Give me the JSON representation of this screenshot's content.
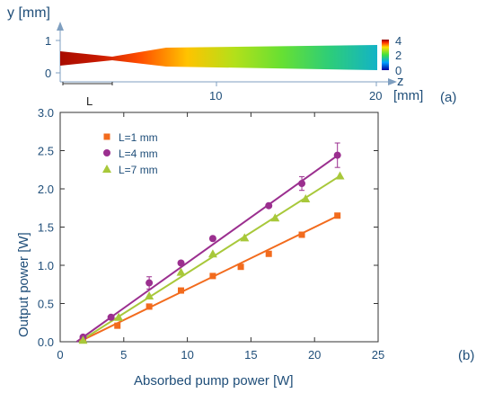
{
  "panels": {
    "a_label": "(a)",
    "b_label": "(b)"
  },
  "colors": {
    "text": "#1f4e79",
    "axis_a": "#7f9fc0",
    "series": {
      "L=1 mm": "#f26b1d",
      "L=4 mm": "#9b2f8f",
      "L=7 mm": "#a8c83a"
    }
  },
  "chart_data": [
    {
      "type": "heatmap",
      "description_of_view": "crystal temperature map along z",
      "ylabel": "y [mm]",
      "xlabel": "[mm]",
      "z_axis_label": "z",
      "x_ticks": [
        "10",
        "20"
      ],
      "y_ticks": [
        "1",
        "0"
      ],
      "x_range": [
        0,
        20
      ],
      "y_range": [
        0,
        1
      ],
      "colorbar_ticks": [
        "4",
        "2",
        "0"
      ],
      "colorbar_range": [
        0,
        4
      ],
      "segment_label": "L",
      "segment_length_mm": 4,
      "color_stops": [
        {
          "z": 0,
          "value": 3.9
        },
        {
          "z": 2.3,
          "value": 3.8
        },
        {
          "z": 5,
          "value": 3.5
        },
        {
          "z": 8,
          "value": 3.1
        },
        {
          "z": 11,
          "value": 2.6
        },
        {
          "z": 14,
          "value": 2.2
        },
        {
          "z": 17,
          "value": 1.7
        },
        {
          "z": 20,
          "value": 1.3
        }
      ]
    },
    {
      "type": "scatter",
      "xlabel": "Absorbed pump power [W]",
      "ylabel": "Output power [W]",
      "xlim": [
        0,
        25
      ],
      "ylim": [
        0,
        3.0
      ],
      "x_ticks": [
        0,
        5,
        10,
        15,
        20,
        25
      ],
      "y_ticks": [
        0.0,
        0.5,
        1.0,
        1.5,
        2.0,
        2.5,
        3.0
      ],
      "x_tick_labels": [
        "0",
        "5",
        "10",
        "15",
        "20",
        "25"
      ],
      "y_tick_labels": [
        "0.0",
        "0.5",
        "1.0",
        "1.5",
        "2.0",
        "2.5",
        "3.0"
      ],
      "legend_position": "top-left",
      "series": [
        {
          "name": "L=1 mm",
          "marker": "square",
          "x": [
            1.8,
            4.5,
            7.0,
            9.5,
            12.0,
            14.2,
            16.4,
            19.0,
            21.8
          ],
          "y": [
            0.02,
            0.21,
            0.46,
            0.67,
            0.86,
            0.98,
            1.15,
            1.4,
            1.65
          ],
          "fit": {
            "x": [
              1.5,
              22.0
            ],
            "y": [
              0.0,
              1.66
            ]
          }
        },
        {
          "name": "L=4 mm",
          "marker": "circle",
          "x": [
            1.8,
            4.0,
            7.0,
            9.5,
            12.0,
            16.4,
            19.0,
            21.8
          ],
          "y": [
            0.06,
            0.32,
            0.77,
            1.03,
            1.35,
            1.78,
            2.07,
            2.44
          ],
          "error": [
            0,
            0,
            0.08,
            0,
            0,
            0,
            0.09,
            0.16
          ],
          "fit": {
            "x": [
              1.3,
              22.0
            ],
            "y": [
              0.0,
              2.46
            ]
          }
        },
        {
          "name": "L=7 mm",
          "marker": "triangle",
          "x": [
            1.8,
            4.6,
            7.0,
            9.5,
            12.0,
            14.5,
            16.9,
            19.3,
            22.0
          ],
          "y": [
            0.02,
            0.32,
            0.6,
            0.91,
            1.15,
            1.36,
            1.62,
            1.87,
            2.17
          ],
          "fit": {
            "x": [
              1.5,
              22.0
            ],
            "y": [
              0.0,
              2.17
            ]
          }
        }
      ]
    }
  ]
}
